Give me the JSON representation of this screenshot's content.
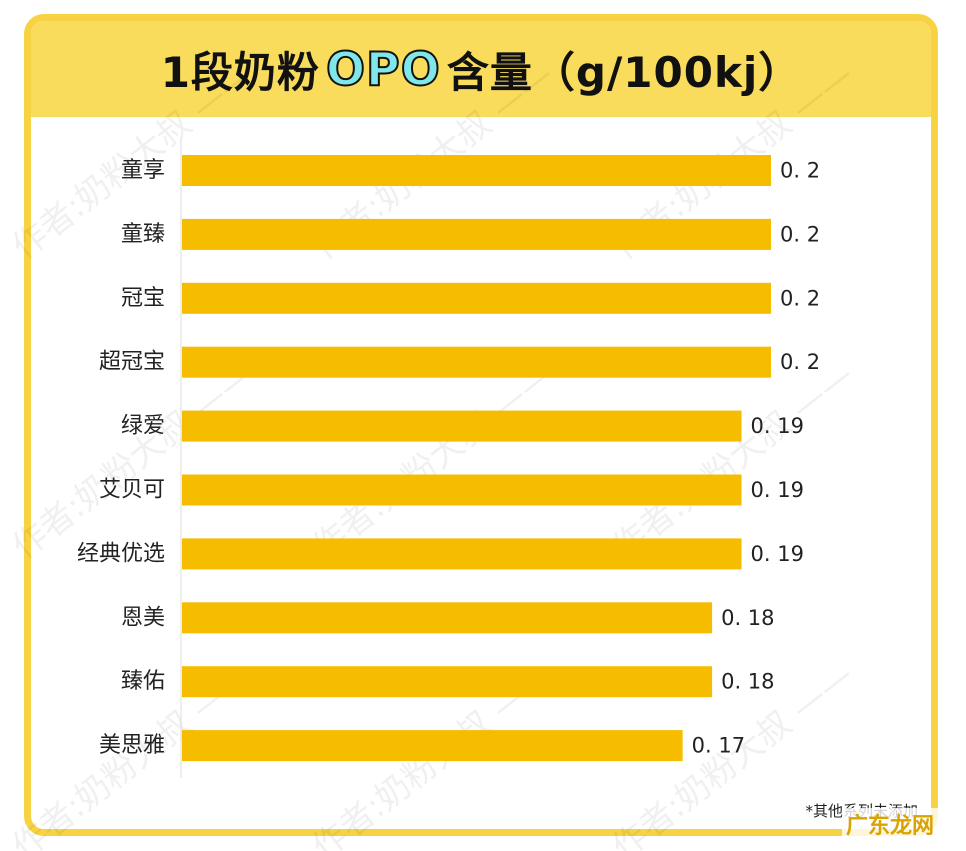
{
  "title": {
    "prefix": "1段奶粉",
    "highlight": "OPO",
    "suffix": "含量（g/100kj）"
  },
  "chart_data": {
    "type": "bar",
    "orientation": "horizontal",
    "categories": [
      "童享",
      "童臻",
      "冠宝",
      "超冠宝",
      "绿爱",
      "艾贝可",
      "经典优选",
      "恩美",
      "臻佑",
      "美思雅"
    ],
    "values": [
      0.2,
      0.2,
      0.2,
      0.2,
      0.19,
      0.19,
      0.19,
      0.18,
      0.18,
      0.17
    ],
    "value_labels": [
      "0. 2",
      "0. 2",
      "0. 2",
      "0. 2",
      "0. 19",
      "0. 19",
      "0. 19",
      "0. 18",
      "0. 18",
      "0. 17"
    ],
    "xlim": [
      0,
      0.2
    ],
    "bar_color": "#f5bc00",
    "grid": false,
    "legend": "none"
  },
  "footnote": "*其他系列未添加",
  "watermark_text": "作者:奶粉大叔",
  "brand": "广东龙网",
  "colors": {
    "frame": "#f7d344",
    "title_bg": "#f9dc5c",
    "highlight": "#7fe7e9"
  }
}
